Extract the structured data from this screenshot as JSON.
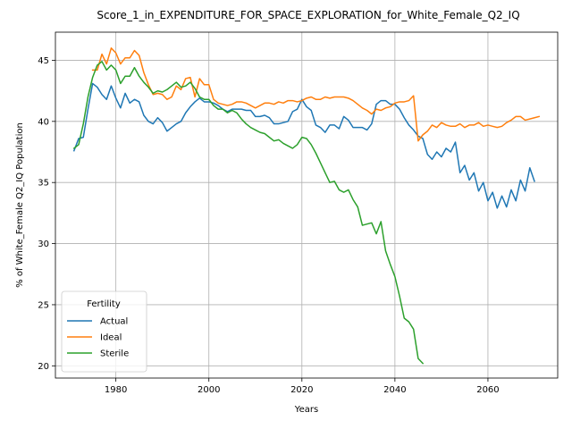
{
  "chart_data": {
    "type": "line",
    "title": "Score_1_in_EXPENDITURE_FOR_SPACE_EXPLORATION_for_White_Female_Q2_IQ",
    "xlabel": "Years",
    "ylabel": "% of White_Female Q2_IQ Population",
    "xlim": [
      1967,
      2075
    ],
    "ylim": [
      19,
      47.3
    ],
    "xticks": [
      1980,
      2000,
      2020,
      2040,
      2060
    ],
    "yticks": [
      20,
      25,
      30,
      35,
      40,
      45
    ],
    "grid": true,
    "legend": {
      "title": "Fertility",
      "placement": "lower-left"
    },
    "series": [
      {
        "name": "Actual",
        "color": "#1f77b4",
        "points": [
          [
            1971,
            37.6
          ],
          [
            1972,
            38.6
          ],
          [
            1973,
            38.7
          ],
          [
            1974,
            41.0
          ],
          [
            1975,
            43.1
          ],
          [
            1976,
            42.8
          ],
          [
            1977,
            42.2
          ],
          [
            1978,
            41.8
          ],
          [
            1979,
            42.9
          ],
          [
            1980,
            41.9
          ],
          [
            1981,
            41.1
          ],
          [
            1982,
            42.3
          ],
          [
            1983,
            41.5
          ],
          [
            1984,
            41.8
          ],
          [
            1985,
            41.6
          ],
          [
            1986,
            40.5
          ],
          [
            1987,
            40.0
          ],
          [
            1988,
            39.8
          ],
          [
            1989,
            40.3
          ],
          [
            1990,
            39.9
          ],
          [
            1991,
            39.2
          ],
          [
            1992,
            39.5
          ],
          [
            1993,
            39.8
          ],
          [
            1994,
            40.0
          ],
          [
            1995,
            40.7
          ],
          [
            1996,
            41.2
          ],
          [
            1997,
            41.6
          ],
          [
            1998,
            41.9
          ],
          [
            1999,
            41.6
          ],
          [
            2000,
            41.6
          ],
          [
            2001,
            41.5
          ],
          [
            2002,
            41.3
          ],
          [
            2003,
            41.0
          ],
          [
            2004,
            40.8
          ],
          [
            2005,
            41.0
          ],
          [
            2006,
            41.0
          ],
          [
            2007,
            41.0
          ],
          [
            2008,
            40.9
          ],
          [
            2009,
            40.9
          ],
          [
            2010,
            40.4
          ],
          [
            2011,
            40.4
          ],
          [
            2012,
            40.5
          ],
          [
            2013,
            40.3
          ],
          [
            2014,
            39.8
          ],
          [
            2015,
            39.8
          ],
          [
            2016,
            39.9
          ],
          [
            2017,
            40.0
          ],
          [
            2018,
            40.8
          ],
          [
            2019,
            41.0
          ],
          [
            2020,
            41.8
          ],
          [
            2021,
            41.2
          ],
          [
            2022,
            40.9
          ],
          [
            2023,
            39.7
          ],
          [
            2024,
            39.5
          ],
          [
            2025,
            39.1
          ],
          [
            2026,
            39.7
          ],
          [
            2027,
            39.7
          ],
          [
            2028,
            39.4
          ],
          [
            2029,
            40.4
          ],
          [
            2030,
            40.1
          ],
          [
            2031,
            39.5
          ],
          [
            2032,
            39.5
          ],
          [
            2033,
            39.5
          ],
          [
            2034,
            39.3
          ],
          [
            2035,
            39.8
          ],
          [
            2036,
            41.4
          ],
          [
            2037,
            41.7
          ],
          [
            2038,
            41.7
          ],
          [
            2039,
            41.4
          ],
          [
            2040,
            41.4
          ],
          [
            2041,
            41.0
          ],
          [
            2042,
            40.3
          ],
          [
            2043,
            39.7
          ],
          [
            2044,
            39.3
          ],
          [
            2045,
            38.8
          ],
          [
            2046,
            38.6
          ],
          [
            2047,
            37.3
          ],
          [
            2048,
            36.9
          ],
          [
            2049,
            37.5
          ],
          [
            2050,
            37.1
          ],
          [
            2051,
            37.8
          ],
          [
            2052,
            37.5
          ],
          [
            2053,
            38.3
          ],
          [
            2054,
            35.8
          ],
          [
            2055,
            36.4
          ],
          [
            2056,
            35.2
          ],
          [
            2057,
            35.8
          ],
          [
            2058,
            34.3
          ],
          [
            2059,
            35.0
          ],
          [
            2060,
            33.5
          ],
          [
            2061,
            34.2
          ],
          [
            2062,
            32.9
          ],
          [
            2063,
            33.9
          ],
          [
            2064,
            33.0
          ],
          [
            2065,
            34.4
          ],
          [
            2066,
            33.5
          ],
          [
            2067,
            35.2
          ],
          [
            2068,
            34.3
          ],
          [
            2069,
            36.2
          ],
          [
            2070,
            35.1
          ]
        ]
      },
      {
        "name": "Ideal",
        "color": "#ff7f0e",
        "points": [
          [
            1975,
            44.2
          ],
          [
            1976,
            44.2
          ],
          [
            1977,
            45.5
          ],
          [
            1978,
            44.7
          ],
          [
            1979,
            46.0
          ],
          [
            1980,
            45.6
          ],
          [
            1981,
            44.7
          ],
          [
            1982,
            45.2
          ],
          [
            1983,
            45.2
          ],
          [
            1984,
            45.8
          ],
          [
            1985,
            45.4
          ],
          [
            1986,
            44.0
          ],
          [
            1987,
            43.0
          ],
          [
            1988,
            42.2
          ],
          [
            1989,
            42.3
          ],
          [
            1990,
            42.2
          ],
          [
            1991,
            41.8
          ],
          [
            1992,
            42.0
          ],
          [
            1993,
            42.9
          ],
          [
            1994,
            42.6
          ],
          [
            1995,
            43.5
          ],
          [
            1996,
            43.6
          ],
          [
            1997,
            42.0
          ],
          [
            1998,
            43.5
          ],
          [
            1999,
            43.0
          ],
          [
            2000,
            43.0
          ],
          [
            2001,
            41.8
          ],
          [
            2002,
            41.5
          ],
          [
            2003,
            41.4
          ],
          [
            2004,
            41.3
          ],
          [
            2005,
            41.4
          ],
          [
            2006,
            41.6
          ],
          [
            2007,
            41.6
          ],
          [
            2008,
            41.5
          ],
          [
            2009,
            41.3
          ],
          [
            2010,
            41.1
          ],
          [
            2011,
            41.3
          ],
          [
            2012,
            41.5
          ],
          [
            2013,
            41.5
          ],
          [
            2014,
            41.4
          ],
          [
            2015,
            41.6
          ],
          [
            2016,
            41.5
          ],
          [
            2017,
            41.7
          ],
          [
            2018,
            41.7
          ],
          [
            2019,
            41.6
          ],
          [
            2020,
            41.7
          ],
          [
            2021,
            41.9
          ],
          [
            2022,
            42.0
          ],
          [
            2023,
            41.8
          ],
          [
            2024,
            41.8
          ],
          [
            2025,
            42.0
          ],
          [
            2026,
            41.9
          ],
          [
            2027,
            42.0
          ],
          [
            2028,
            42.0
          ],
          [
            2029,
            42.0
          ],
          [
            2030,
            41.9
          ],
          [
            2031,
            41.7
          ],
          [
            2032,
            41.4
          ],
          [
            2033,
            41.1
          ],
          [
            2034,
            40.9
          ],
          [
            2035,
            40.6
          ],
          [
            2036,
            41.0
          ],
          [
            2037,
            40.9
          ],
          [
            2038,
            41.1
          ],
          [
            2039,
            41.2
          ],
          [
            2040,
            41.5
          ],
          [
            2041,
            41.6
          ],
          [
            2042,
            41.6
          ],
          [
            2043,
            41.7
          ],
          [
            2044,
            42.1
          ],
          [
            2045,
            38.4
          ],
          [
            2046,
            38.9
          ],
          [
            2047,
            39.2
          ],
          [
            2048,
            39.7
          ],
          [
            2049,
            39.5
          ],
          [
            2050,
            39.9
          ],
          [
            2051,
            39.7
          ],
          [
            2052,
            39.6
          ],
          [
            2053,
            39.6
          ],
          [
            2054,
            39.8
          ],
          [
            2055,
            39.5
          ],
          [
            2056,
            39.7
          ],
          [
            2057,
            39.7
          ],
          [
            2058,
            39.9
          ],
          [
            2059,
            39.6
          ],
          [
            2060,
            39.7
          ],
          [
            2061,
            39.6
          ],
          [
            2062,
            39.5
          ],
          [
            2063,
            39.6
          ],
          [
            2064,
            39.9
          ],
          [
            2065,
            40.1
          ],
          [
            2066,
            40.4
          ],
          [
            2067,
            40.4
          ],
          [
            2068,
            40.1
          ],
          [
            2069,
            40.2
          ],
          [
            2070,
            40.3
          ],
          [
            2071,
            40.4
          ]
        ]
      },
      {
        "name": "Sterile",
        "color": "#2ca02c",
        "points": [
          [
            1971,
            37.8
          ],
          [
            1972,
            38.1
          ],
          [
            1973,
            39.8
          ],
          [
            1974,
            42.0
          ],
          [
            1975,
            43.6
          ],
          [
            1976,
            44.6
          ],
          [
            1977,
            44.9
          ],
          [
            1978,
            44.2
          ],
          [
            1979,
            44.6
          ],
          [
            1980,
            44.2
          ],
          [
            1981,
            43.1
          ],
          [
            1982,
            43.7
          ],
          [
            1983,
            43.7
          ],
          [
            1984,
            44.4
          ],
          [
            1985,
            43.7
          ],
          [
            1986,
            43.2
          ],
          [
            1987,
            42.8
          ],
          [
            1988,
            42.3
          ],
          [
            1989,
            42.5
          ],
          [
            1990,
            42.4
          ],
          [
            1991,
            42.6
          ],
          [
            1992,
            42.9
          ],
          [
            1993,
            43.2
          ],
          [
            1994,
            42.8
          ],
          [
            1995,
            42.9
          ],
          [
            1996,
            43.2
          ],
          [
            1997,
            42.7
          ],
          [
            1998,
            42.0
          ],
          [
            1999,
            41.8
          ],
          [
            2000,
            41.8
          ],
          [
            2001,
            41.3
          ],
          [
            2002,
            41.0
          ],
          [
            2003,
            41.0
          ],
          [
            2004,
            40.7
          ],
          [
            2005,
            40.9
          ],
          [
            2006,
            40.7
          ],
          [
            2007,
            40.2
          ],
          [
            2008,
            39.8
          ],
          [
            2009,
            39.5
          ],
          [
            2010,
            39.3
          ],
          [
            2011,
            39.1
          ],
          [
            2012,
            39.0
          ],
          [
            2013,
            38.7
          ],
          [
            2014,
            38.4
          ],
          [
            2015,
            38.5
          ],
          [
            2016,
            38.2
          ],
          [
            2017,
            38.0
          ],
          [
            2018,
            37.8
          ],
          [
            2019,
            38.1
          ],
          [
            2020,
            38.7
          ],
          [
            2021,
            38.6
          ],
          [
            2022,
            38.1
          ],
          [
            2023,
            37.4
          ],
          [
            2024,
            36.6
          ],
          [
            2025,
            35.8
          ],
          [
            2026,
            35.0
          ],
          [
            2027,
            35.1
          ],
          [
            2028,
            34.4
          ],
          [
            2029,
            34.2
          ],
          [
            2030,
            34.4
          ],
          [
            2031,
            33.6
          ],
          [
            2032,
            33.0
          ],
          [
            2033,
            31.5
          ],
          [
            2034,
            31.6
          ],
          [
            2035,
            31.7
          ],
          [
            2036,
            30.8
          ],
          [
            2037,
            31.8
          ],
          [
            2038,
            29.4
          ],
          [
            2039,
            28.3
          ],
          [
            2040,
            27.3
          ],
          [
            2041,
            25.7
          ],
          [
            2042,
            23.9
          ],
          [
            2043,
            23.6
          ],
          [
            2044,
            23.0
          ],
          [
            2045,
            20.6
          ],
          [
            2046,
            20.2
          ]
        ]
      }
    ]
  }
}
